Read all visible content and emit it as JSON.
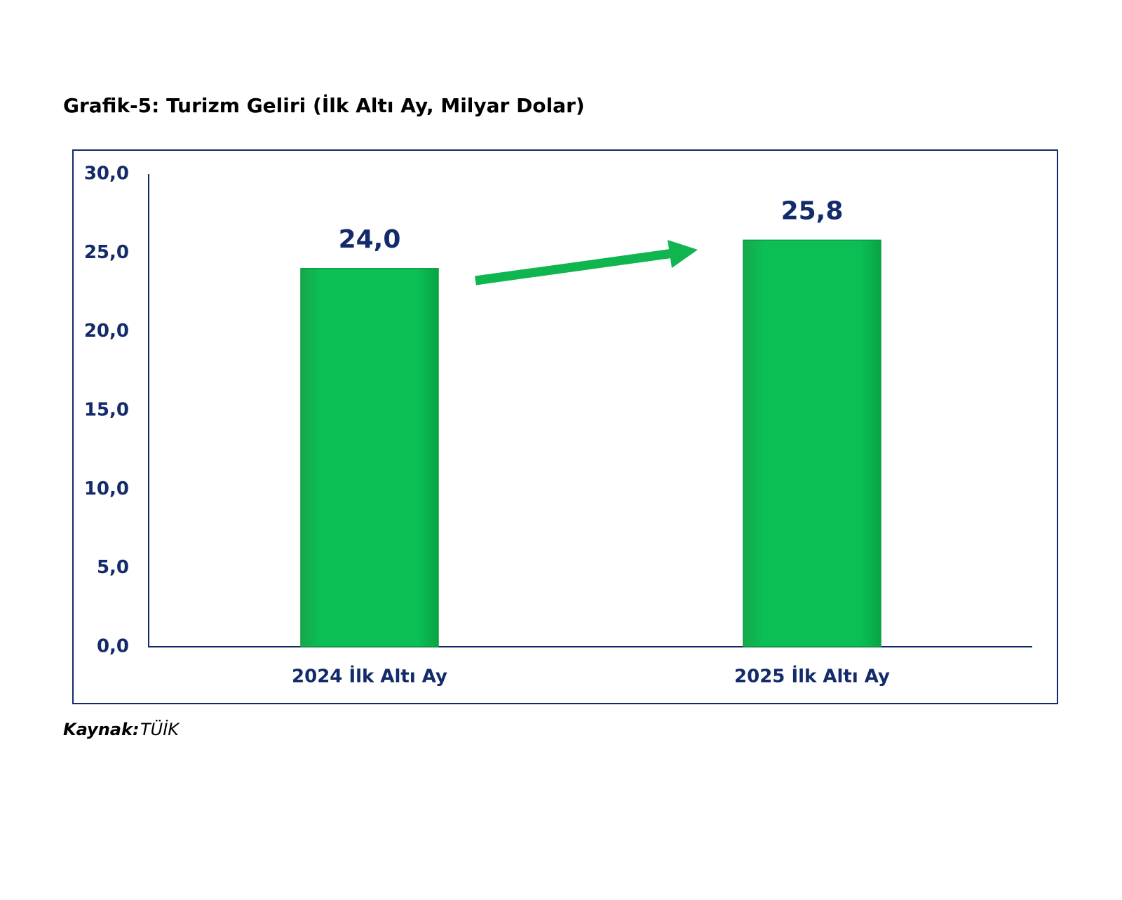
{
  "chart_data": {
    "type": "bar",
    "title": "Grafik-5: Turizm Geliri (İlk Altı Ay, Milyar Dolar)",
    "categories": [
      "2024 İlk Altı Ay",
      "2025 İlk Altı Ay"
    ],
    "values": [
      24.0,
      25.8
    ],
    "value_labels": [
      "24,0",
      "25,8"
    ],
    "color": "#09b951",
    "ylim": [
      0,
      30
    ],
    "yticks": [
      {
        "value": 0,
        "label": "0,0"
      },
      {
        "value": 5,
        "label": "5,0"
      },
      {
        "value": 10,
        "label": "10,0"
      },
      {
        "value": 15,
        "label": "15,0"
      },
      {
        "value": 20,
        "label": "20,0"
      },
      {
        "value": 25,
        "label": "25,0"
      },
      {
        "value": 30,
        "label": "30,0"
      }
    ],
    "grid": false,
    "source": {
      "label": "Kaynak:",
      "text": "TÜİK"
    }
  }
}
